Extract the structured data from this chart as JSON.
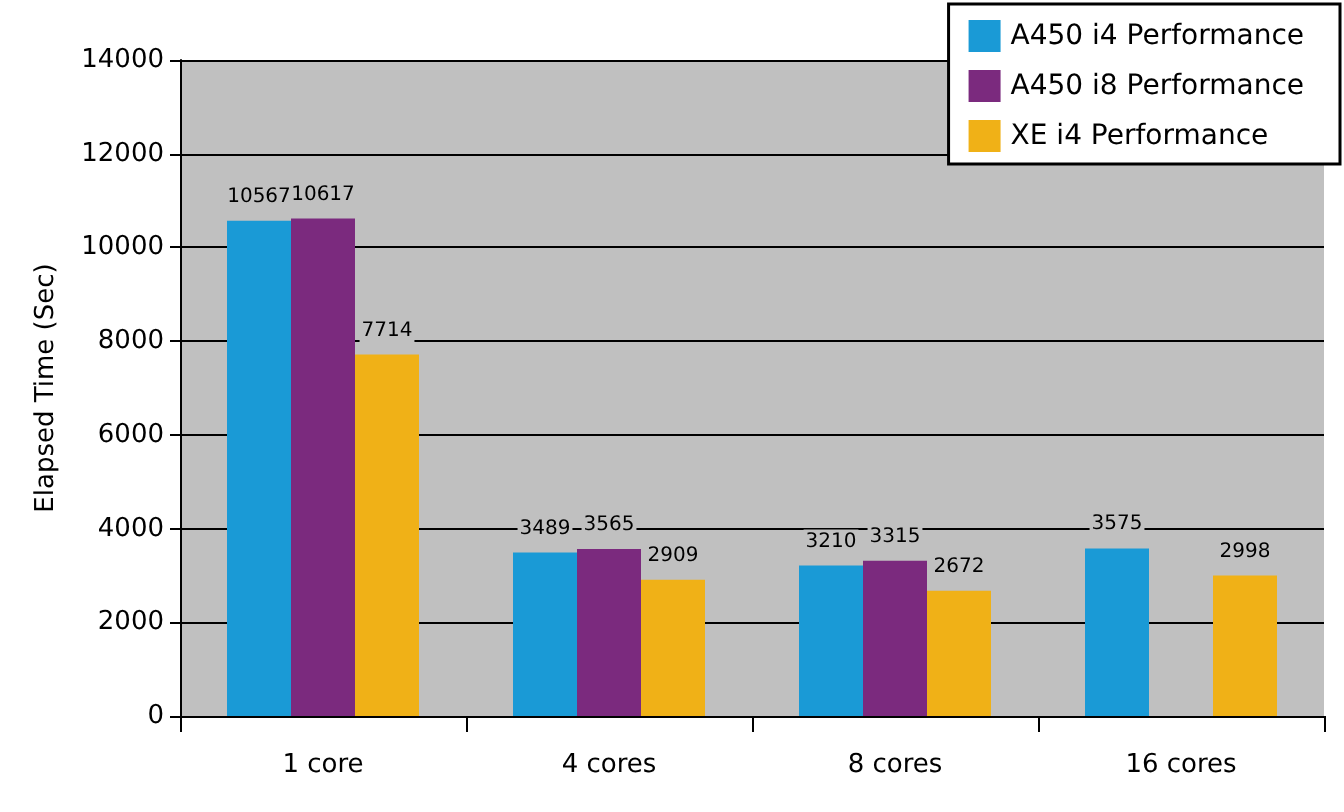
{
  "chart_data": {
    "type": "bar",
    "ylabel": "Elapsed Time (Sec)",
    "categories": [
      "1 core",
      "4 cores",
      "8 cores",
      "16 cores"
    ],
    "series": [
      {
        "name": "A450 i4 Performance",
        "color": "#1a9ad6",
        "values": [
          10567,
          3489,
          3210,
          3575
        ]
      },
      {
        "name": "A450 i8 Performance",
        "color": "#7b2a7e",
        "values": [
          10617,
          3565,
          3315,
          null
        ]
      },
      {
        "name": "XE i4 Performance",
        "color": "#f0b117",
        "values": [
          7714,
          2909,
          2672,
          2998
        ]
      }
    ],
    "ylim": [
      0,
      14000
    ],
    "yticks": [
      0,
      2000,
      4000,
      6000,
      8000,
      10000,
      12000,
      14000
    ],
    "grid": "y",
    "legend": "top right",
    "data_labels": true
  }
}
